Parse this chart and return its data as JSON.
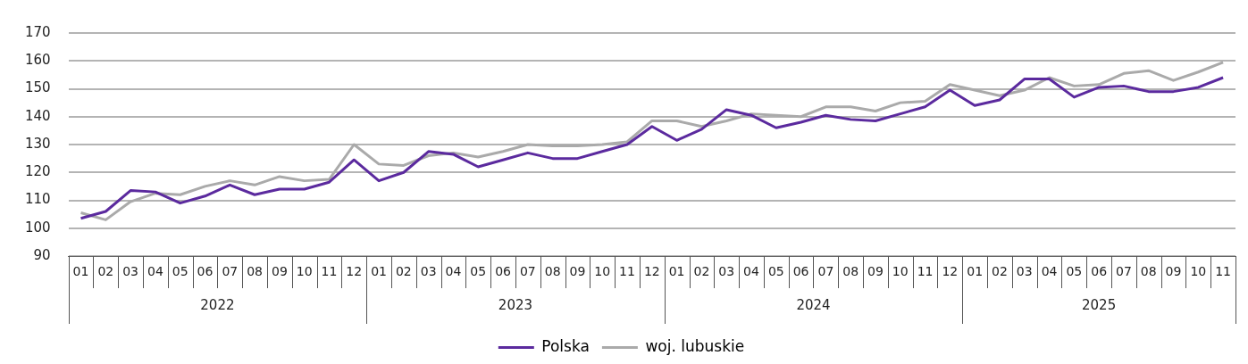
{
  "chart_data": {
    "type": "line",
    "categories": [
      "01",
      "02",
      "03",
      "04",
      "05",
      "06",
      "07",
      "08",
      "09",
      "10",
      "11",
      "12",
      "01",
      "02",
      "03",
      "04",
      "05",
      "06",
      "07",
      "08",
      "09",
      "10",
      "11",
      "12",
      "01",
      "02",
      "03",
      "04",
      "05",
      "06",
      "07",
      "08",
      "09",
      "10",
      "11",
      "12",
      "01",
      "02",
      "03",
      "04",
      "05",
      "06",
      "07",
      "08",
      "09",
      "10",
      "11"
    ],
    "annotations": [
      "2022",
      "2023",
      "2024",
      "2025"
    ],
    "series": [
      {
        "name": "Polska",
        "color": "#5b2a9e",
        "values": [
          103.5,
          106,
          113.5,
          113,
          109,
          111.5,
          115.5,
          112,
          114,
          114,
          116.5,
          124.5,
          117,
          120,
          127.5,
          126.5,
          122,
          124.5,
          127,
          125,
          125,
          127.5,
          130,
          136.5,
          131.5,
          135.5,
          142.5,
          140.5,
          136,
          138,
          140.5,
          139,
          138.5,
          141,
          143.5,
          149.5,
          144,
          146,
          153.5,
          153.5,
          147,
          150.5,
          151,
          149,
          149,
          150.5,
          154
        ]
      },
      {
        "name": "woj. lubuskie",
        "color": "#aaaaaa",
        "values": [
          105.5,
          103,
          109.5,
          112.5,
          112,
          115,
          117,
          115.5,
          118.5,
          117,
          117.5,
          130,
          123,
          122.5,
          126,
          127,
          125.5,
          127.5,
          130,
          129.5,
          129.5,
          130,
          131,
          138.5,
          138.5,
          136.5,
          138.5,
          141,
          140.5,
          140,
          143.5,
          143.5,
          142,
          145,
          145.5,
          151.5,
          149.5,
          147.5,
          149.5,
          154,
          151,
          151.5,
          155.5,
          156.5,
          153,
          156,
          159.5
        ]
      }
    ],
    "ylim": [
      90,
      170
    ],
    "yticks": [
      90,
      100,
      110,
      120,
      130,
      140,
      150,
      160,
      170
    ],
    "grid": "y",
    "legend": "bottom",
    "marker": "none",
    "line_style": "solid"
  }
}
